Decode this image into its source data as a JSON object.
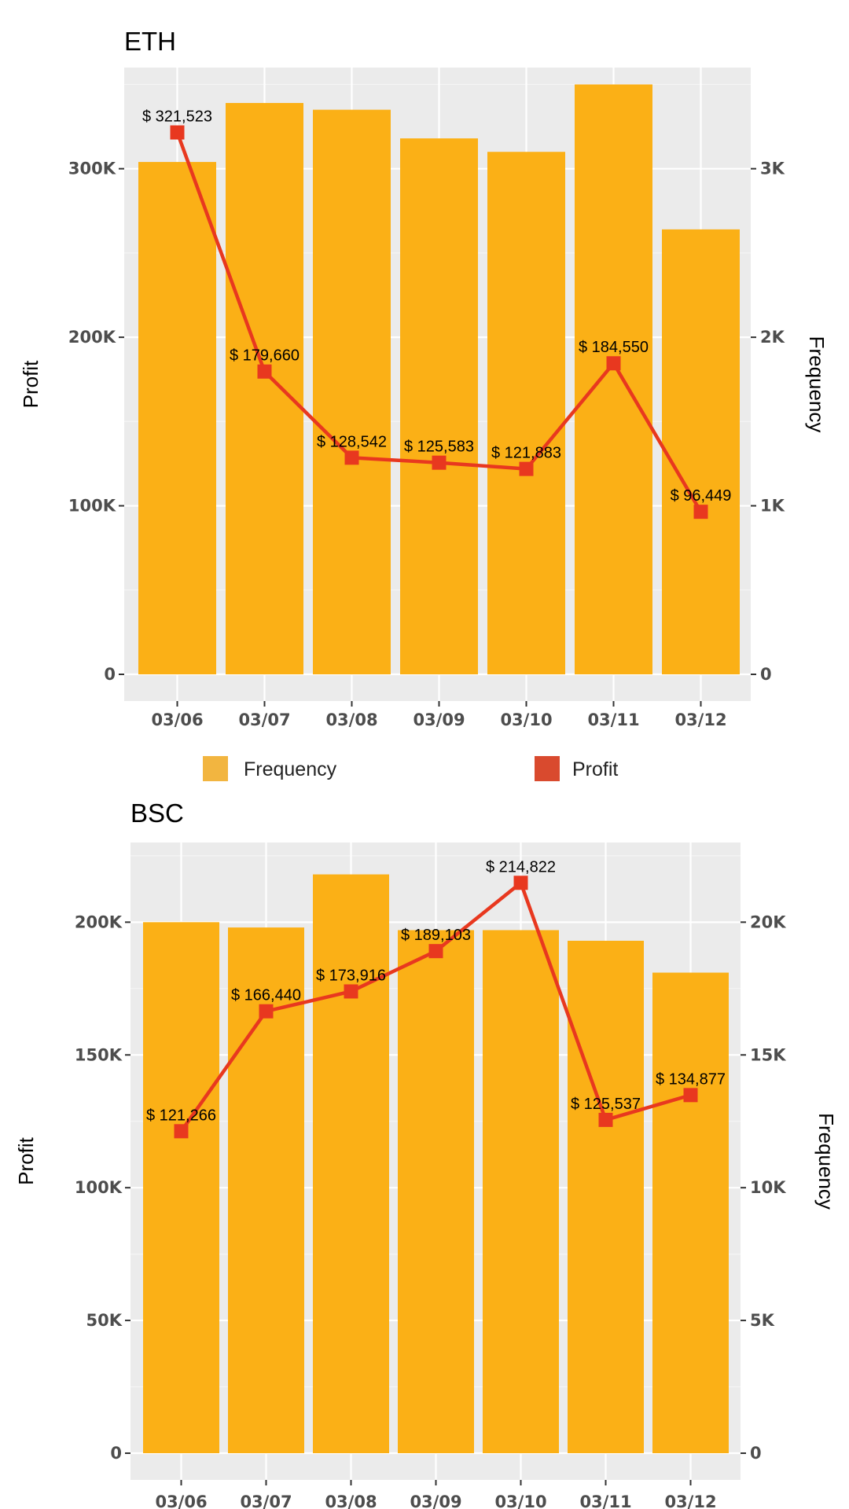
{
  "chart_data": [
    {
      "type": "bar+line",
      "title": "ETH",
      "categories": [
        "03/06",
        "03/07",
        "03/08",
        "03/09",
        "03/10",
        "03/11",
        "03/12"
      ],
      "series": [
        {
          "name": "Frequency",
          "type": "bar",
          "axis": "right",
          "color": "#fbb016",
          "values": [
            3040,
            3390,
            3350,
            3180,
            3100,
            3500,
            2640
          ]
        },
        {
          "name": "Profit",
          "type": "line",
          "axis": "left",
          "color": "#e8381f",
          "values": [
            321523,
            179660,
            128542,
            125583,
            121883,
            184550,
            96449
          ],
          "labels": [
            "$ 321,523",
            "$ 179,660",
            "$ 128,542",
            "$ 125,583",
            "$ 121,883",
            "$ 184,550",
            "$ 96,449"
          ]
        }
      ],
      "ylabel": "Profit",
      "y2label": "Frequency",
      "ylim": [
        0,
        360000
      ],
      "y2lim": [
        0,
        3600
      ],
      "yticks": [
        0,
        100000,
        200000,
        300000
      ],
      "ytick_labels": [
        "0",
        "100K",
        "200K",
        "300K"
      ],
      "y2ticks": [
        0,
        1000,
        2000,
        3000
      ],
      "y2tick_labels": [
        "0",
        "1K",
        "2K",
        "3K"
      ],
      "grid": true
    },
    {
      "type": "bar+line",
      "title": "BSC",
      "categories": [
        "03/06",
        "03/07",
        "03/08",
        "03/09",
        "03/10",
        "03/11",
        "03/12"
      ],
      "series": [
        {
          "name": "Frequency",
          "type": "bar",
          "axis": "right",
          "color": "#fbb016",
          "values": [
            20000,
            19800,
            21800,
            19700,
            19700,
            19300,
            18100
          ]
        },
        {
          "name": "Profit",
          "type": "line",
          "axis": "left",
          "color": "#e8381f",
          "values": [
            121266,
            166440,
            173916,
            189103,
            214822,
            125537,
            134877
          ],
          "labels": [
            "$ 121,266",
            "$ 166,440",
            "$ 173,916",
            "$ 189,103",
            "$ 214,822",
            "$ 125,537",
            "$ 134,877"
          ]
        }
      ],
      "ylabel": "Profit",
      "y2label": "Frequency",
      "ylim": [
        0,
        230000
      ],
      "y2lim": [
        0,
        23000
      ],
      "yticks": [
        0,
        50000,
        100000,
        150000,
        200000
      ],
      "ytick_labels": [
        "0",
        "50K",
        "100K",
        "150K",
        "200K"
      ],
      "y2ticks": [
        0,
        5000,
        10000,
        15000,
        20000
      ],
      "y2tick_labels": [
        "0",
        "5K",
        "10K",
        "15K",
        "20K"
      ],
      "grid": true
    }
  ],
  "legend": {
    "position": "between-charts",
    "items": [
      {
        "label": "Frequency",
        "color": "#f2b540"
      },
      {
        "label": "Profit",
        "color": "#d94a2e"
      }
    ]
  }
}
